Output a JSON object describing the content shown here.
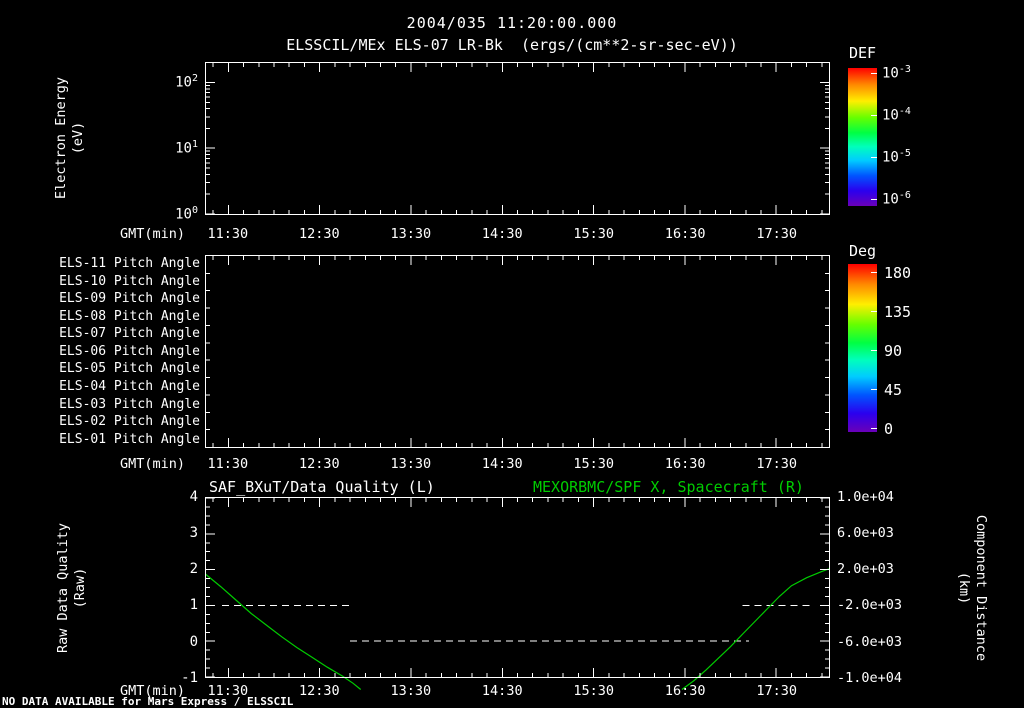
{
  "header": {
    "datetime": "2004/035 11:20:00.000",
    "title": "ELSSCIL/MEx ELS-07 LR-Bk  (ergs/(cm**2-sr-sec-eV))"
  },
  "colors": {
    "background": "#000000",
    "axis": "#ffffff",
    "green": "#00cc00"
  },
  "time_axis": {
    "start": "11:15",
    "end": "18:05",
    "first_major": "11:30",
    "major": 60,
    "minor": 10
  },
  "panel_energy": {
    "ylabel_line1": "Electron Energy",
    "ylabel_line2": "(eV)",
    "yticks": [
      {
        "b": "10",
        "e": "0"
      },
      {
        "b": "10",
        "e": "1"
      },
      {
        "b": "10",
        "e": "2"
      }
    ],
    "xlabel": "GMT(min)",
    "xticks": [
      "11:30",
      "12:30",
      "13:30",
      "14:30",
      "15:30",
      "16:30",
      "17:30"
    ],
    "colorbar": {
      "label": "DEF",
      "ticks": [
        {
          "b": "10",
          "e": "-3"
        },
        {
          "b": "10",
          "e": "-4"
        },
        {
          "b": "10",
          "e": "-5"
        },
        {
          "b": "10",
          "e": "-6"
        }
      ]
    }
  },
  "panel_pitch": {
    "row_labels": [
      "ELS-11 Pitch Angle",
      "ELS-10 Pitch Angle",
      "ELS-09 Pitch Angle",
      "ELS-08 Pitch Angle",
      "ELS-07 Pitch Angle",
      "ELS-06 Pitch Angle",
      "ELS-05 Pitch Angle",
      "ELS-04 Pitch Angle",
      "ELS-03 Pitch Angle",
      "ELS-02 Pitch Angle",
      "ELS-01 Pitch Angle"
    ],
    "xlabel": "GMT(min)",
    "xticks": [
      "11:30",
      "12:30",
      "13:30",
      "14:30",
      "15:30",
      "16:30",
      "17:30"
    ],
    "colorbar": {
      "label": "Deg",
      "ticks": [
        "180",
        "135",
        "90",
        "45",
        "0"
      ]
    }
  },
  "panel_quality": {
    "title_left": "SAF_BXuT/Data Quality (L)",
    "title_right": "MEXORBMC/SPF X, Spacecraft (R)",
    "ylabel_left_line1": "Raw Data Quality",
    "ylabel_left_line2": "(Raw)",
    "ylabel_right_line1": "Component Distance",
    "ylabel_right_line2": "(km)",
    "yticks_left": [
      "4",
      "3",
      "2",
      "1",
      "0",
      "-1"
    ],
    "yticks_right": [
      "1.0e+04",
      "6.0e+03",
      "2.0e+03",
      "-2.0e+03",
      "-6.0e+03",
      "-1.0e+04"
    ],
    "xlabel": "GMT(min)",
    "xticks": [
      "11:30",
      "12:30",
      "13:30",
      "14:30",
      "15:30",
      "16:30",
      "17:30"
    ]
  },
  "footer": {
    "status": "NO DATA AVAILABLE for Mars Express / ELSSCIL"
  },
  "chart_data": [
    {
      "type": "heatmap",
      "title": "ELSSCIL/MEx ELS-07 LR-Bk (ergs/(cm**2-sr-sec-eV))",
      "ylabel": "Electron Energy (eV)",
      "y_scale": "log",
      "ylim": [
        1,
        200
      ],
      "yticks": [
        "10^0",
        "10^1",
        "10^2"
      ],
      "xlabel": "GMT(min)",
      "x_range": [
        "11:15",
        "18:05"
      ],
      "xticks": [
        "11:30",
        "12:30",
        "13:30",
        "14:30",
        "15:30",
        "16:30",
        "17:30"
      ],
      "colorbar": {
        "label": "DEF",
        "scale": "log",
        "top": "1e-3",
        "bottom": "1e-6"
      },
      "values": [],
      "no_data": true
    },
    {
      "type": "heatmap",
      "rows": [
        "ELS-11 Pitch Angle",
        "ELS-10 Pitch Angle",
        "ELS-09 Pitch Angle",
        "ELS-08 Pitch Angle",
        "ELS-07 Pitch Angle",
        "ELS-06 Pitch Angle",
        "ELS-05 Pitch Angle",
        "ELS-04 Pitch Angle",
        "ELS-03 Pitch Angle",
        "ELS-02 Pitch Angle",
        "ELS-01 Pitch Angle"
      ],
      "xlabel": "GMT(min)",
      "x_range": [
        "11:15",
        "18:05"
      ],
      "xticks": [
        "11:30",
        "12:30",
        "13:30",
        "14:30",
        "15:30",
        "16:30",
        "17:30"
      ],
      "colorbar": {
        "label": "Deg",
        "range": [
          0,
          180
        ],
        "ticks": [
          180,
          135,
          90,
          45,
          0
        ]
      },
      "values": [],
      "no_data": true
    },
    {
      "type": "line",
      "title_left": "SAF_BXuT/Data Quality (L)",
      "title_right": "MEXORBMC/SPF X, Spacecraft (R)",
      "xlabel": "GMT(min)",
      "x_range": [
        "11:15",
        "18:05"
      ],
      "xticks": [
        "11:30",
        "12:30",
        "13:30",
        "14:30",
        "15:30",
        "16:30",
        "17:30"
      ],
      "ylim_left": [
        -1,
        4
      ],
      "ylim_right": [
        -10000,
        10000
      ],
      "yticks_left": [
        4,
        3,
        2,
        1,
        0,
        -1
      ],
      "yticks_right": [
        "1.0e+04",
        "6.0e+03",
        "2.0e+03",
        "-2.0e+03",
        "-6.0e+03",
        "-1.0e+04"
      ],
      "series": [
        {
          "name": "SAF_BXuT/Data Quality (L)",
          "axis": "left",
          "color": "#ffffff",
          "style": "dashed",
          "segments": [
            {
              "value": 1,
              "from": "11:26",
              "to": "12:50"
            },
            {
              "value": 0,
              "from": "12:50",
              "to": "17:12"
            },
            {
              "value": 1,
              "from": "17:08",
              "to": "17:55"
            }
          ]
        },
        {
          "name": "MEXORBMC/SPF X, Spacecraft (R)",
          "axis": "right",
          "color": "#00cc00",
          "style": "solid",
          "branches": [
            [
              [
                "11:15",
                1500
              ],
              [
                "11:25",
                100
              ],
              [
                "11:35",
                -1400
              ],
              [
                "11:45",
                -2900
              ],
              [
                "11:55",
                -4200
              ],
              [
                "12:05",
                -5500
              ],
              [
                "12:15",
                -6700
              ],
              [
                "12:25",
                -7800
              ],
              [
                "12:35",
                -8900
              ],
              [
                "12:45",
                -9900
              ],
              [
                "12:52",
                -10700
              ],
              [
                "12:57",
                -11400
              ]
            ],
            [
              [
                "16:28",
                -11400
              ],
              [
                "16:36",
                -10400
              ],
              [
                "16:44",
                -9200
              ],
              [
                "16:52",
                -7900
              ],
              [
                "17:00",
                -6600
              ],
              [
                "17:08",
                -5200
              ],
              [
                "17:16",
                -3800
              ],
              [
                "17:24",
                -2400
              ],
              [
                "17:32",
                -1000
              ],
              [
                "17:40",
                200
              ],
              [
                "17:50",
                1100
              ],
              [
                "18:00",
                1800
              ],
              [
                "18:05",
                2100
              ]
            ]
          ]
        }
      ]
    }
  ]
}
